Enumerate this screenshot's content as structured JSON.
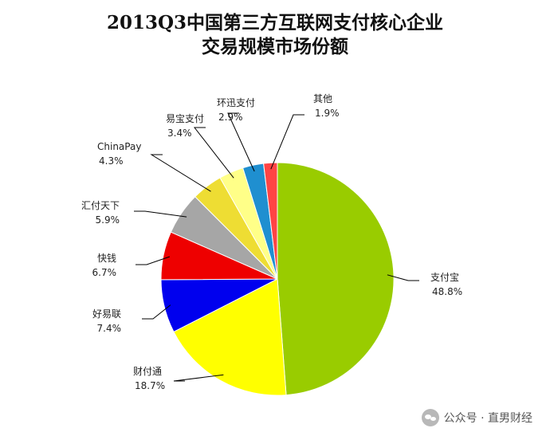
{
  "chart_data": {
    "type": "pie",
    "title": "2013Q3中国第三方互联网支付核心企业",
    "subtitle": "交易规模市场份额",
    "slices": [
      {
        "label": "支付宝",
        "value": 48.8,
        "display": "48.8%",
        "color": "#99cc00"
      },
      {
        "label": "财付通",
        "value": 18.7,
        "display": "18.7%",
        "color": "#ffff00"
      },
      {
        "label": "好易联",
        "value": 7.4,
        "display": "7.4%",
        "color": "#0000ee"
      },
      {
        "label": "快钱",
        "value": 6.7,
        "display": "6.7%",
        "color": "#ee0000"
      },
      {
        "label": "汇付天下",
        "value": 5.9,
        "display": "5.9%",
        "color": "#a6a6a6"
      },
      {
        "label": "ChinaPay",
        "value": 4.3,
        "display": "4.3%",
        "color": "#eedd33"
      },
      {
        "label": "易宝支付",
        "value": 3.4,
        "display": "3.4%",
        "color": "#ffff88"
      },
      {
        "label": "环迅支付",
        "value": 2.9,
        "display": "2.9%",
        "color": "#1f8fd0"
      },
      {
        "label": "其他",
        "value": 1.9,
        "display": "1.9%",
        "color": "#ff4444"
      }
    ]
  },
  "watermark": {
    "text": "公众号 · 直男财经",
    "icon": "wechat-icon"
  }
}
